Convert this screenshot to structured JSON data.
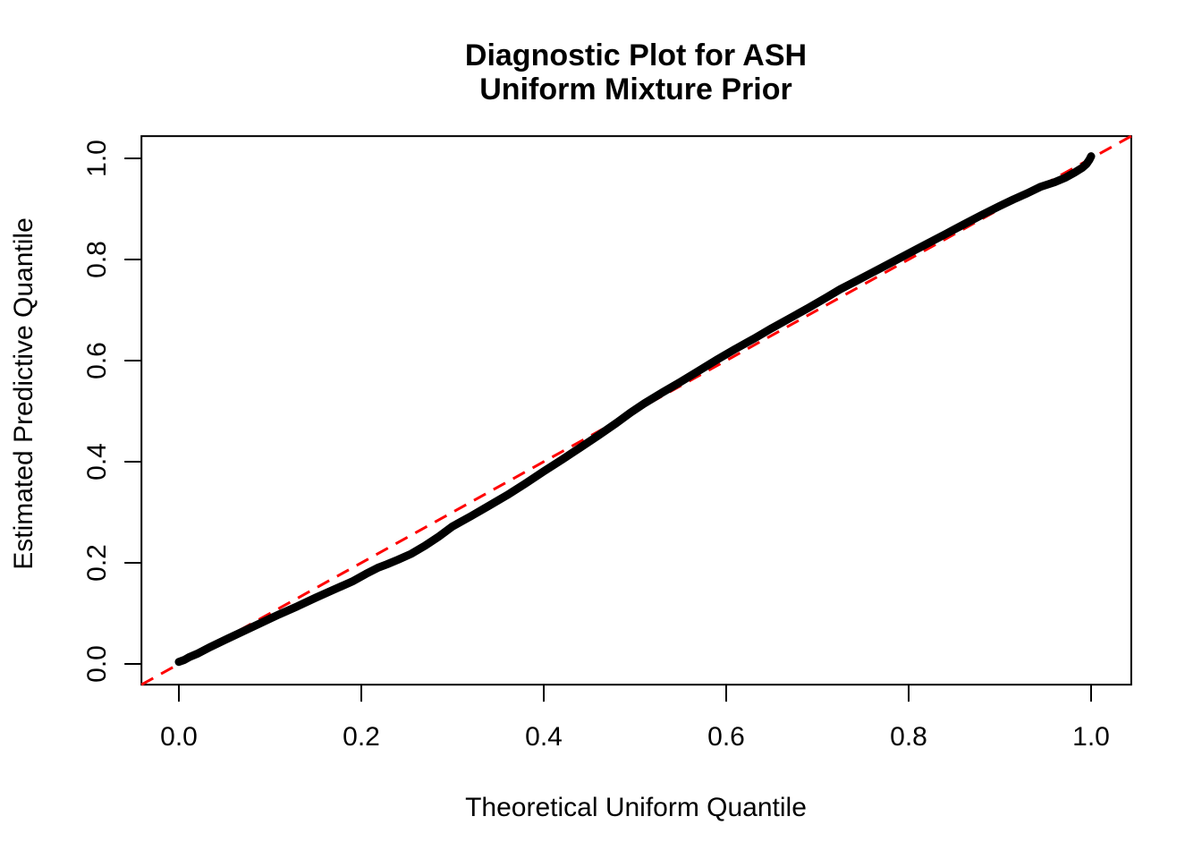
{
  "title": {
    "line1": "Diagnostic Plot for ASH",
    "line2": "Uniform Mixture Prior"
  },
  "axes": {
    "x": {
      "label": "Theoretical Uniform Quantile",
      "tick_values": [
        0.0,
        0.2,
        0.4,
        0.6,
        0.8,
        1.0
      ],
      "tick_labels": [
        "0.0",
        "0.2",
        "0.4",
        "0.6",
        "0.8",
        "1.0"
      ]
    },
    "y": {
      "label": "Estimated Predictive Quantile",
      "tick_values": [
        0.0,
        0.2,
        0.4,
        0.6,
        0.8,
        1.0
      ],
      "tick_labels": [
        "0.0",
        "0.2",
        "0.4",
        "0.6",
        "0.8",
        "1.0"
      ]
    }
  },
  "colors": {
    "background": "#FFFFFF",
    "curve": "#000000",
    "reference_line": "#FF0000",
    "axis": "#000000",
    "text": "#000000"
  },
  "chart_data": {
    "type": "scatter",
    "title": "Diagnostic Plot for ASH\nUniform Mixture Prior",
    "xlabel": "Theoretical Uniform Quantile",
    "ylabel": "Estimated Predictive Quantile",
    "xlim": [
      -0.041,
      1.044
    ],
    "ylim": [
      -0.041,
      1.044
    ],
    "grid": false,
    "legend": "none",
    "reference_line": {
      "type": "identity",
      "intercept": 0,
      "slope": 1,
      "style": "dashed",
      "color": "#FF0000"
    },
    "series": [
      {
        "name": "estimated-vs-theoretical-quantile",
        "marker": "dense-points",
        "color": "#000000",
        "points": [
          [
            0.0,
            0.004
          ],
          [
            0.006,
            0.008
          ],
          [
            0.012,
            0.014
          ],
          [
            0.02,
            0.02
          ],
          [
            0.035,
            0.034
          ],
          [
            0.05,
            0.047
          ],
          [
            0.07,
            0.064
          ],
          [
            0.09,
            0.081
          ],
          [
            0.11,
            0.098
          ],
          [
            0.13,
            0.114
          ],
          [
            0.15,
            0.131
          ],
          [
            0.17,
            0.147
          ],
          [
            0.19,
            0.163
          ],
          [
            0.205,
            0.178
          ],
          [
            0.218,
            0.19
          ],
          [
            0.228,
            0.197
          ],
          [
            0.24,
            0.206
          ],
          [
            0.255,
            0.218
          ],
          [
            0.27,
            0.234
          ],
          [
            0.285,
            0.252
          ],
          [
            0.3,
            0.272
          ],
          [
            0.32,
            0.292
          ],
          [
            0.34,
            0.313
          ],
          [
            0.36,
            0.334
          ],
          [
            0.38,
            0.357
          ],
          [
            0.4,
            0.381
          ],
          [
            0.42,
            0.404
          ],
          [
            0.44,
            0.428
          ],
          [
            0.46,
            0.452
          ],
          [
            0.48,
            0.477
          ],
          [
            0.495,
            0.497
          ],
          [
            0.51,
            0.515
          ],
          [
            0.53,
            0.537
          ],
          [
            0.55,
            0.558
          ],
          [
            0.57,
            0.58
          ],
          [
            0.59,
            0.602
          ],
          [
            0.61,
            0.623
          ],
          [
            0.63,
            0.643
          ],
          [
            0.65,
            0.664
          ],
          [
            0.67,
            0.684
          ],
          [
            0.69,
            0.704
          ],
          [
            0.71,
            0.725
          ],
          [
            0.725,
            0.741
          ],
          [
            0.74,
            0.755
          ],
          [
            0.76,
            0.774
          ],
          [
            0.78,
            0.793
          ],
          [
            0.8,
            0.812
          ],
          [
            0.82,
            0.831
          ],
          [
            0.84,
            0.85
          ],
          [
            0.86,
            0.869
          ],
          [
            0.88,
            0.888
          ],
          [
            0.9,
            0.906
          ],
          [
            0.915,
            0.919
          ],
          [
            0.93,
            0.931
          ],
          [
            0.945,
            0.944
          ],
          [
            0.96,
            0.953
          ],
          [
            0.972,
            0.962
          ],
          [
            0.982,
            0.972
          ],
          [
            0.99,
            0.981
          ],
          [
            0.995,
            0.989
          ],
          [
            0.998,
            0.997
          ],
          [
            1.0,
            1.004
          ]
        ]
      }
    ]
  }
}
